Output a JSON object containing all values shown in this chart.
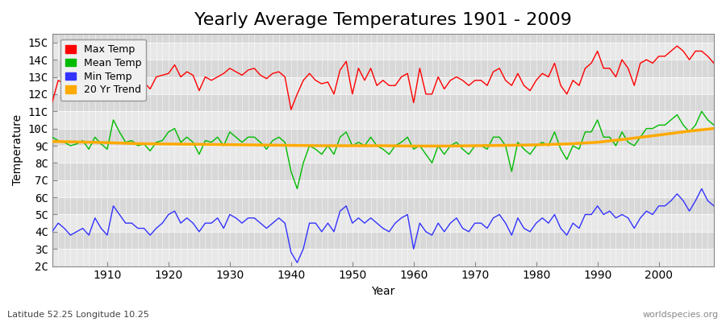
{
  "title": "Yearly Average Temperatures 1901 - 2009",
  "xlabel": "Year",
  "ylabel": "Temperature",
  "x_label_bottom": "Latitude 52.25 Longitude 10.25",
  "x_label_right": "worldspecies.org",
  "years": [
    1901,
    1902,
    1903,
    1904,
    1905,
    1906,
    1907,
    1908,
    1909,
    1910,
    1911,
    1912,
    1913,
    1914,
    1915,
    1916,
    1917,
    1918,
    1919,
    1920,
    1921,
    1922,
    1923,
    1924,
    1925,
    1926,
    1927,
    1928,
    1929,
    1930,
    1931,
    1932,
    1933,
    1934,
    1935,
    1936,
    1937,
    1938,
    1939,
    1940,
    1941,
    1942,
    1943,
    1944,
    1945,
    1946,
    1947,
    1948,
    1949,
    1950,
    1951,
    1952,
    1953,
    1954,
    1955,
    1956,
    1957,
    1958,
    1959,
    1960,
    1961,
    1962,
    1963,
    1964,
    1965,
    1966,
    1967,
    1968,
    1969,
    1970,
    1971,
    1972,
    1973,
    1974,
    1975,
    1976,
    1977,
    1978,
    1979,
    1980,
    1981,
    1982,
    1983,
    1984,
    1985,
    1986,
    1987,
    1988,
    1989,
    1990,
    1991,
    1992,
    1993,
    1994,
    1995,
    1996,
    1997,
    1998,
    1999,
    2000,
    2001,
    2002,
    2003,
    2004,
    2005,
    2006,
    2007,
    2008,
    2009
  ],
  "max_temp": [
    11.5,
    12.8,
    12.6,
    12.3,
    12.5,
    13.0,
    12.5,
    13.1,
    12.8,
    12.0,
    13.2,
    13.2,
    12.7,
    13.0,
    12.7,
    12.7,
    12.3,
    13.0,
    13.1,
    13.2,
    13.7,
    13.0,
    13.3,
    13.1,
    12.2,
    13.0,
    12.8,
    13.0,
    13.2,
    13.5,
    13.3,
    13.1,
    13.4,
    13.5,
    13.1,
    12.9,
    13.2,
    13.3,
    13.0,
    11.1,
    12.0,
    12.8,
    13.2,
    12.8,
    12.6,
    12.7,
    12.0,
    13.4,
    13.9,
    12.0,
    13.5,
    12.8,
    13.5,
    12.5,
    12.8,
    12.5,
    12.5,
    13.0,
    13.2,
    11.5,
    13.5,
    12.0,
    12.0,
    13.0,
    12.3,
    12.8,
    13.0,
    12.8,
    12.5,
    12.8,
    12.8,
    12.5,
    13.3,
    13.5,
    12.8,
    12.5,
    13.2,
    12.5,
    12.2,
    12.8,
    13.2,
    13.0,
    13.8,
    12.5,
    12.0,
    12.8,
    12.5,
    13.5,
    13.8,
    14.5,
    13.5,
    13.5,
    13.0,
    14.0,
    13.5,
    12.5,
    13.8,
    14.0,
    13.8,
    14.2,
    14.2,
    14.5,
    14.8,
    14.5,
    14.0,
    14.5,
    14.5,
    14.2,
    13.8
  ],
  "mean_temp": [
    9.5,
    9.3,
    9.2,
    9.0,
    9.1,
    9.3,
    8.8,
    9.5,
    9.1,
    8.8,
    10.5,
    9.8,
    9.2,
    9.3,
    9.0,
    9.1,
    8.7,
    9.2,
    9.3,
    9.8,
    10.0,
    9.2,
    9.5,
    9.2,
    8.5,
    9.3,
    9.2,
    9.5,
    9.0,
    9.8,
    9.5,
    9.2,
    9.5,
    9.5,
    9.2,
    8.8,
    9.3,
    9.5,
    9.2,
    7.5,
    6.5,
    8.0,
    9.0,
    8.8,
    8.5,
    9.0,
    8.5,
    9.5,
    9.8,
    9.0,
    9.2,
    9.0,
    9.5,
    9.0,
    8.8,
    8.5,
    9.0,
    9.2,
    9.5,
    8.8,
    9.0,
    8.5,
    8.0,
    9.0,
    8.5,
    9.0,
    9.2,
    8.8,
    8.5,
    9.0,
    9.0,
    8.8,
    9.5,
    9.5,
    9.0,
    7.5,
    9.2,
    8.8,
    8.5,
    9.0,
    9.2,
    9.0,
    9.8,
    8.8,
    8.2,
    9.0,
    8.8,
    9.8,
    9.8,
    10.5,
    9.5,
    9.5,
    9.0,
    9.8,
    9.2,
    9.0,
    9.5,
    10.0,
    10.0,
    10.2,
    10.2,
    10.5,
    10.8,
    10.2,
    9.8,
    10.2,
    11.0,
    10.5,
    10.2
  ],
  "min_temp": [
    4.0,
    4.5,
    4.2,
    3.8,
    4.0,
    4.2,
    3.8,
    4.8,
    4.2,
    3.8,
    5.5,
    5.0,
    4.5,
    4.5,
    4.2,
    4.2,
    3.8,
    4.2,
    4.5,
    5.0,
    5.2,
    4.5,
    4.8,
    4.5,
    4.0,
    4.5,
    4.5,
    4.8,
    4.2,
    5.0,
    4.8,
    4.5,
    4.8,
    4.8,
    4.5,
    4.2,
    4.5,
    4.8,
    4.5,
    2.8,
    2.2,
    3.0,
    4.5,
    4.5,
    4.0,
    4.5,
    4.0,
    5.2,
    5.5,
    4.5,
    4.8,
    4.5,
    4.8,
    4.5,
    4.2,
    4.0,
    4.5,
    4.8,
    5.0,
    3.0,
    4.5,
    4.0,
    3.8,
    4.5,
    4.0,
    4.5,
    4.8,
    4.2,
    4.0,
    4.5,
    4.5,
    4.2,
    4.8,
    5.0,
    4.5,
    3.8,
    4.8,
    4.2,
    4.0,
    4.5,
    4.8,
    4.5,
    5.0,
    4.2,
    3.8,
    4.5,
    4.2,
    5.0,
    5.0,
    5.5,
    5.0,
    5.2,
    4.8,
    5.0,
    4.8,
    4.2,
    4.8,
    5.2,
    5.0,
    5.5,
    5.5,
    5.8,
    6.2,
    5.8,
    5.2,
    5.8,
    6.5,
    5.8,
    5.5
  ],
  "trend_years": [
    1901,
    1905,
    1910,
    1915,
    1920,
    1925,
    1930,
    1935,
    1940,
    1945,
    1950,
    1955,
    1960,
    1965,
    1970,
    1975,
    1980,
    1985,
    1990,
    1995,
    2000,
    2005,
    2009
  ],
  "trend_vals": [
    9.25,
    9.22,
    9.18,
    9.12,
    9.1,
    9.08,
    9.06,
    9.04,
    9.02,
    9.0,
    9.0,
    9.0,
    8.98,
    8.98,
    9.0,
    9.02,
    9.05,
    9.1,
    9.2,
    9.4,
    9.62,
    9.85,
    10.0
  ],
  "max_color": "#ff0000",
  "mean_color": "#00bb00",
  "min_color": "#3333ff",
  "trend_color": "#ffaa00",
  "outer_bg": "#ffffff",
  "band_light": "#e8e8e8",
  "band_dark": "#d8d8d8",
  "grid_color": "#ffffff",
  "ylim": [
    2,
    15.5
  ],
  "yticks": [
    2,
    3,
    4,
    5,
    6,
    7,
    8,
    9,
    10,
    11,
    12,
    13,
    14,
    15
  ],
  "ytick_labels": [
    "2C",
    "3C",
    "4C",
    "5C",
    "6C",
    "7C",
    "8C",
    "9C",
    "10C",
    "11C",
    "12C",
    "13C",
    "14C",
    "15C"
  ],
  "xtick_years": [
    1910,
    1920,
    1930,
    1940,
    1950,
    1960,
    1970,
    1980,
    1990,
    2000
  ],
  "title_fontsize": 16,
  "axis_fontsize": 10,
  "legend_fontsize": 9,
  "line_width": 1.0
}
